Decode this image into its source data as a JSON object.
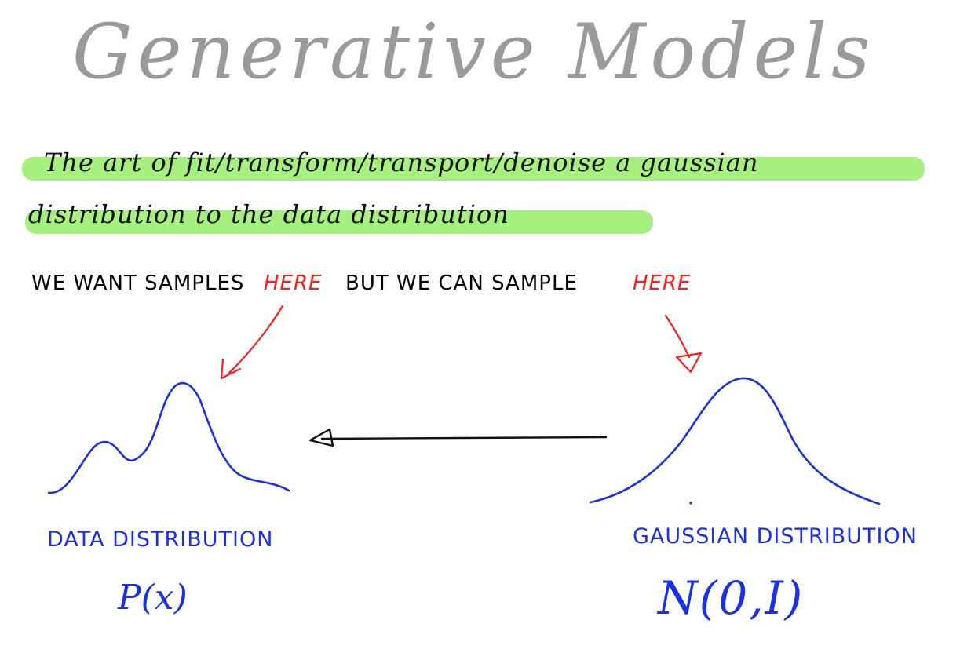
{
  "title": "Generative Models",
  "highlight": {
    "line1": "The art of fit/transform/transport/denoise a gaussian",
    "line2": "distribution to the data distribution"
  },
  "samples_sentence": {
    "part1": "WE WANT SAMPLES",
    "here1": "HERE",
    "part2": "BUT WE CAN SAMPLE",
    "here2": "HERE"
  },
  "left_panel": {
    "label": "DATA DISTRIBUTION",
    "formula": "P(x)"
  },
  "right_panel": {
    "label": "GAUSSIAN DISTRIBUTION",
    "formula": "N(0,I)"
  },
  "colors": {
    "title": "#9a9a9a",
    "highlight": "#a6f07f",
    "red": "#ff1c1c",
    "blue": "#1a2fe8",
    "ink": "#000000"
  }
}
